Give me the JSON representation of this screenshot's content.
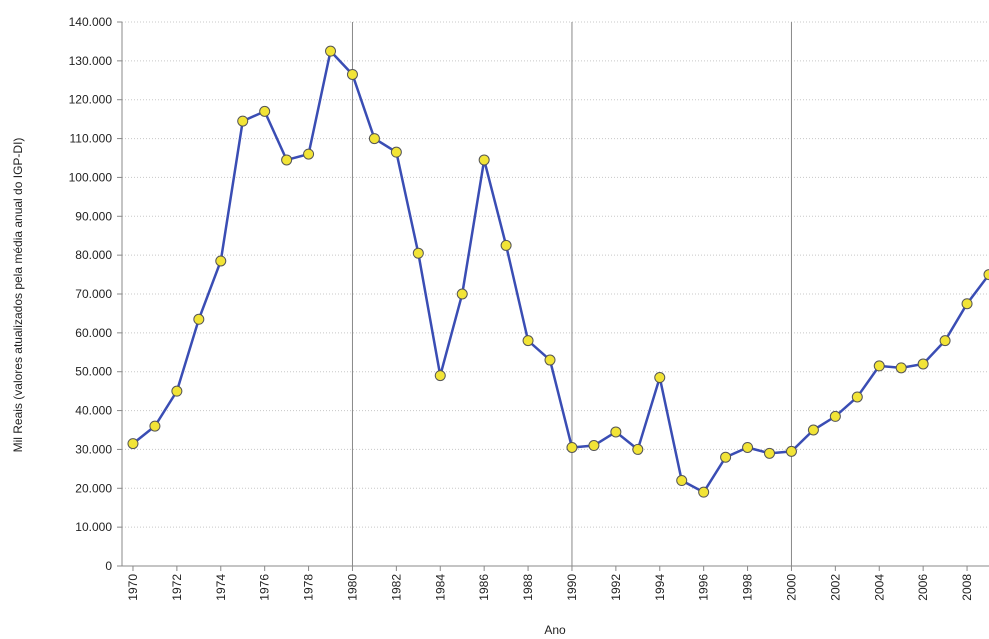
{
  "chart_data": {
    "type": "line",
    "xlabel": "Ano",
    "ylabel": "Mil Reais (valores atualizados pela média anual do IGP-DI)",
    "x": [
      1970,
      1971,
      1972,
      1973,
      1974,
      1975,
      1976,
      1977,
      1978,
      1979,
      1980,
      1981,
      1982,
      1983,
      1984,
      1985,
      1986,
      1987,
      1988,
      1989,
      1990,
      1991,
      1992,
      1993,
      1994,
      1995,
      1996,
      1997,
      1998,
      1999,
      2000,
      2001,
      2002,
      2003,
      2004,
      2005,
      2006,
      2007,
      2008,
      2009
    ],
    "series": [
      {
        "color": "#3a4db4",
        "marker_color": "#f2e436",
        "values": [
          31500,
          36000,
          45000,
          63500,
          78500,
          114500,
          117000,
          104500,
          106000,
          132500,
          126500,
          110000,
          106500,
          80500,
          49000,
          70000,
          104500,
          82500,
          58000,
          53000,
          30500,
          31000,
          34500,
          30000,
          48500,
          22000,
          19000,
          28000,
          30500,
          29000,
          29500,
          35000,
          38500,
          43500,
          51500,
          51000,
          52000,
          58000,
          67500,
          75000
        ]
      }
    ],
    "xlim": [
      1969.5,
      2009
    ],
    "xticks": [
      1970,
      1972,
      1974,
      1976,
      1978,
      1980,
      1982,
      1984,
      1986,
      1988,
      1990,
      1992,
      1994,
      1996,
      1998,
      2000,
      2002,
      2004,
      2006,
      2008
    ],
    "x_grid_lines": [
      1980,
      1990,
      2000
    ],
    "ylim": [
      0,
      140000
    ],
    "yticks": [
      {
        "value": 0,
        "label": "0"
      },
      {
        "value": 10000,
        "label": "10.000"
      },
      {
        "value": 20000,
        "label": "20.000"
      },
      {
        "value": 30000,
        "label": "30.000"
      },
      {
        "value": 40000,
        "label": "40.000"
      },
      {
        "value": 50000,
        "label": "50.000"
      },
      {
        "value": 60000,
        "label": "60.000"
      },
      {
        "value": 70000,
        "label": "70.000"
      },
      {
        "value": 80000,
        "label": "80.000"
      },
      {
        "value": 90000,
        "label": "90.000"
      },
      {
        "value": 100000,
        "label": "100.000"
      },
      {
        "value": 110000,
        "label": "110.000"
      },
      {
        "value": 120000,
        "label": "120.000"
      },
      {
        "value": 130000,
        "label": "130.000"
      },
      {
        "value": 140000,
        "label": "140.000"
      }
    ],
    "grid": true
  }
}
